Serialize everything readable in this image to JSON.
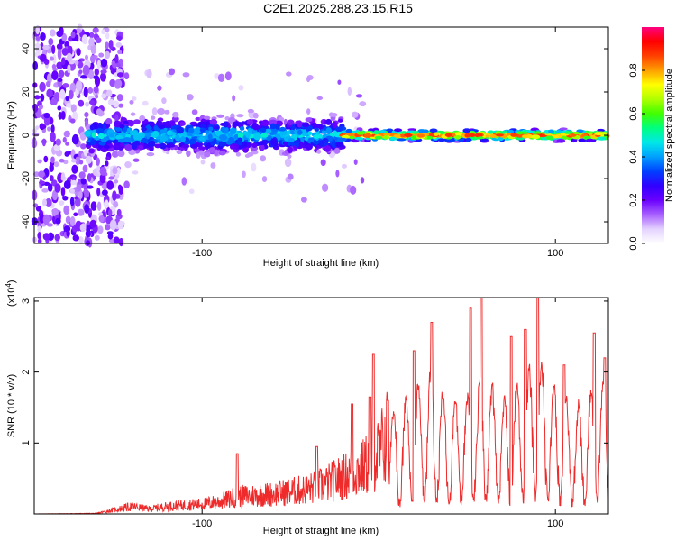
{
  "title": "C2E1.2025.288.23.15.R15",
  "chart_data": [
    {
      "type": "heatmap",
      "name": "spectrogram",
      "xlabel": "Height of straight line (km)",
      "ylabel": "Frequency (Hz)",
      "xlim": [
        -195,
        130
      ],
      "ylim": [
        -50,
        50
      ],
      "xticks": [
        -100,
        100
      ],
      "yticks": [
        -40,
        -20,
        0,
        20,
        40
      ],
      "xtick_labels": [
        "-100",
        "100"
      ],
      "ytick_labels": [
        "-40",
        "-20",
        "0",
        "20",
        "40"
      ],
      "colorbar": {
        "label": "Normalized spectral amplitude",
        "range": [
          0,
          1
        ],
        "ticks": [
          0.0,
          0.2,
          0.4,
          0.6,
          0.8
        ],
        "tick_labels": [
          "0.0",
          "0.2",
          "0.4",
          "0.6",
          "0.8"
        ],
        "colors": [
          "#ffffff",
          "#e4d2ff",
          "#a860ff",
          "#6a00ff",
          "#3000ff",
          "#0040ff",
          "#00a0ff",
          "#00e8e8",
          "#00ff80",
          "#40ff00",
          "#b0ff00",
          "#ffff00",
          "#ffa000",
          "#ff4000",
          "#ff0000",
          "#ff0080"
        ]
      },
      "regions": [
        {
          "x": [
            -195,
            -145
          ],
          "freq_spread": 50,
          "amplitude": 0.18,
          "note": "scattered noise"
        },
        {
          "x": [
            -165,
            -20
          ],
          "center_hz": 0,
          "width_hz": 8,
          "amplitude": 0.4
        },
        {
          "x": [
            -20,
            130
          ],
          "center_hz": 0,
          "width_hz": 3,
          "amplitude": 0.9
        }
      ]
    },
    {
      "type": "line",
      "name": "snr",
      "xlabel": "Height of straight line (km)",
      "ylabel": "SNR (10 * v/v)",
      "y_multiplier": "(x10",
      "y_multiplier_exp": "4",
      "y_multiplier_close": ")",
      "xlim": [
        -195,
        130
      ],
      "ylim": [
        0,
        3.05
      ],
      "xticks": [
        -100,
        100
      ],
      "yticks": [
        1,
        2,
        3
      ],
      "xtick_labels": [
        "-100",
        "100"
      ],
      "ytick_labels": [
        "1",
        "2",
        "3"
      ],
      "color": "#ee2a2a",
      "series": [
        {
          "name": "SNR",
          "x": [
            -195,
            -160,
            -140,
            -130,
            -120,
            -100,
            -90,
            -80,
            -60,
            -40,
            -30,
            -20,
            -10,
            0,
            5,
            10,
            20,
            30,
            40,
            50,
            60,
            70,
            80,
            90,
            100,
            110,
            120,
            130
          ],
          "y": [
            0.0,
            0.01,
            0.15,
            0.1,
            0.15,
            0.2,
            0.25,
            0.35,
            0.4,
            0.5,
            0.6,
            0.75,
            0.9,
            1.2,
            1.6,
            1.4,
            1.8,
            2.0,
            1.5,
            1.7,
            2.0,
            1.6,
            1.9,
            2.2,
            1.8,
            1.5,
            1.7,
            2.0
          ],
          "peaks_x": [
            -80,
            -35,
            -15,
            -5,
            -3,
            5,
            20,
            30,
            52,
            58,
            75,
            83,
            90,
            105,
            122,
            128
          ],
          "peaks_y": [
            0.85,
            0.95,
            1.55,
            1.65,
            2.25,
            1.6,
            2.3,
            2.7,
            2.9,
            3.05,
            2.5,
            2.6,
            3.05,
            2.1,
            2.55,
            2.2
          ]
        }
      ]
    }
  ]
}
